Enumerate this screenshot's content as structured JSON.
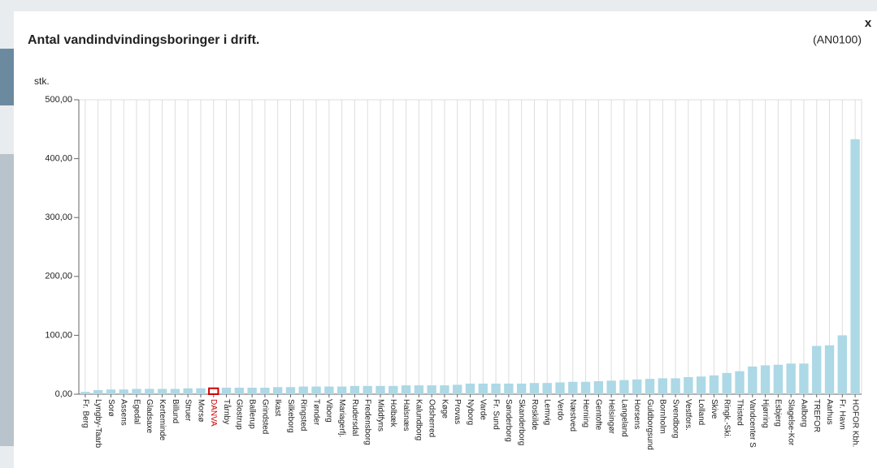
{
  "modal": {
    "close": "x"
  },
  "chart_data": {
    "type": "bar",
    "title": "Antal vandindvindingsboringer i drift.",
    "code": "(AN0100)",
    "y_label": "stk.",
    "categories": [
      "Fr. Berg",
      "Lyngby-Taarb",
      "Sorø",
      "Assens",
      "Egedal",
      "Gladsaxe",
      "Kerteminde",
      "Billund",
      "Struer",
      "Morsø",
      "DANVA",
      "Tårnby",
      "Glostrup",
      "Ballerup",
      "Grindsted",
      "Ikast",
      "Silkeborg",
      "Ringsted",
      "Tønder",
      "Viborg",
      "Mariagerfj.",
      "Rudersdal",
      "Fredensborg",
      "Middfyns",
      "Holbæk",
      "Halsnæs",
      "Kalundborg",
      "Odsherred",
      "Køge",
      "Provas",
      "Nyborg",
      "Varde",
      "Fr. Sund",
      "Sønderborg",
      "Skanderborg",
      "Roskilde",
      "Lemvig",
      "Verdo",
      "Næstved",
      "Herning",
      "Gentofte",
      "Helsingør",
      "Langeland",
      "Horsens",
      "Guldborgsund",
      "Bornholm",
      "Svendborg",
      "Vestfors.",
      "Lolland",
      "Skive",
      "Ringk.-Ski.",
      "Thisted",
      "Vandcenter S",
      "Hjørring",
      "Esbjerg",
      "Slagelse-Kor",
      "Aalborg",
      "TREFOR",
      "Aarhus",
      "Fr. Havn",
      "HOFOR Kbh."
    ],
    "values": [
      4,
      7,
      8,
      8,
      9,
      9,
      9,
      9,
      10,
      10,
      10,
      11,
      11,
      11,
      11,
      12,
      12,
      13,
      13,
      13,
      13,
      14,
      14,
      14,
      14,
      15,
      15,
      15,
      15,
      16,
      18,
      18,
      18,
      18,
      18,
      19,
      19,
      20,
      21,
      21,
      22,
      23,
      24,
      25,
      26,
      27,
      27,
      29,
      30,
      32,
      36,
      39,
      47,
      49,
      50,
      52,
      52,
      82,
      83,
      100,
      433
    ],
    "color": "#add8e6",
    "highlight": "DANVA",
    "highlight_color": "#cc0000",
    "ylim": [
      0,
      500
    ],
    "yticks": [
      {
        "value": 0,
        "label": "0,00"
      },
      {
        "value": 100,
        "label": "100,00"
      },
      {
        "value": 200,
        "label": "200,00"
      },
      {
        "value": 300,
        "label": "300,00"
      },
      {
        "value": 400,
        "label": "400,00"
      },
      {
        "value": 500,
        "label": "500,00"
      }
    ],
    "grid": "x"
  }
}
